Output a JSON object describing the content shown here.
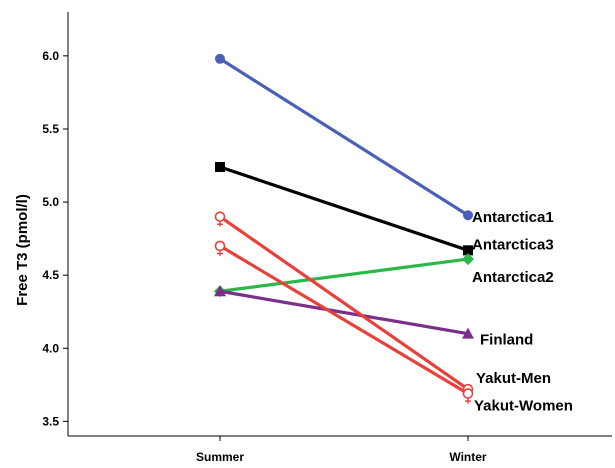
{
  "chart_data": {
    "type": "line",
    "title": "",
    "xlabel": "",
    "ylabel": "Free T3 (pmol/l)",
    "categories": [
      "Summer",
      "Winter"
    ],
    "ylim": [
      3.4,
      6.3
    ],
    "yticks": [
      "3.5",
      "4.0",
      "4.5",
      "5.0",
      "5.5",
      "6.0"
    ],
    "grid": false,
    "series": [
      {
        "name": "Antarctica1",
        "values": [
          5.98,
          4.91
        ],
        "color": "#4a5fb8",
        "marker": "circle"
      },
      {
        "name": "Antarctica3",
        "values": [
          5.24,
          4.67
        ],
        "color": "#000000",
        "marker": "square"
      },
      {
        "name": "Antarctica2",
        "values": [
          4.39,
          4.61
        ],
        "color": "#2bb84a",
        "marker": "diamond"
      },
      {
        "name": "Finland",
        "values": [
          4.39,
          4.1
        ],
        "color": "#7a2f8a",
        "marker": "triangle"
      },
      {
        "name": "Yakut-Men",
        "values": [
          4.9,
          3.72
        ],
        "color": "#e8403a",
        "marker": "female"
      },
      {
        "name": "Yakut-Women",
        "values": [
          4.7,
          3.69
        ],
        "color": "#e8403a",
        "marker": "female"
      }
    ]
  }
}
